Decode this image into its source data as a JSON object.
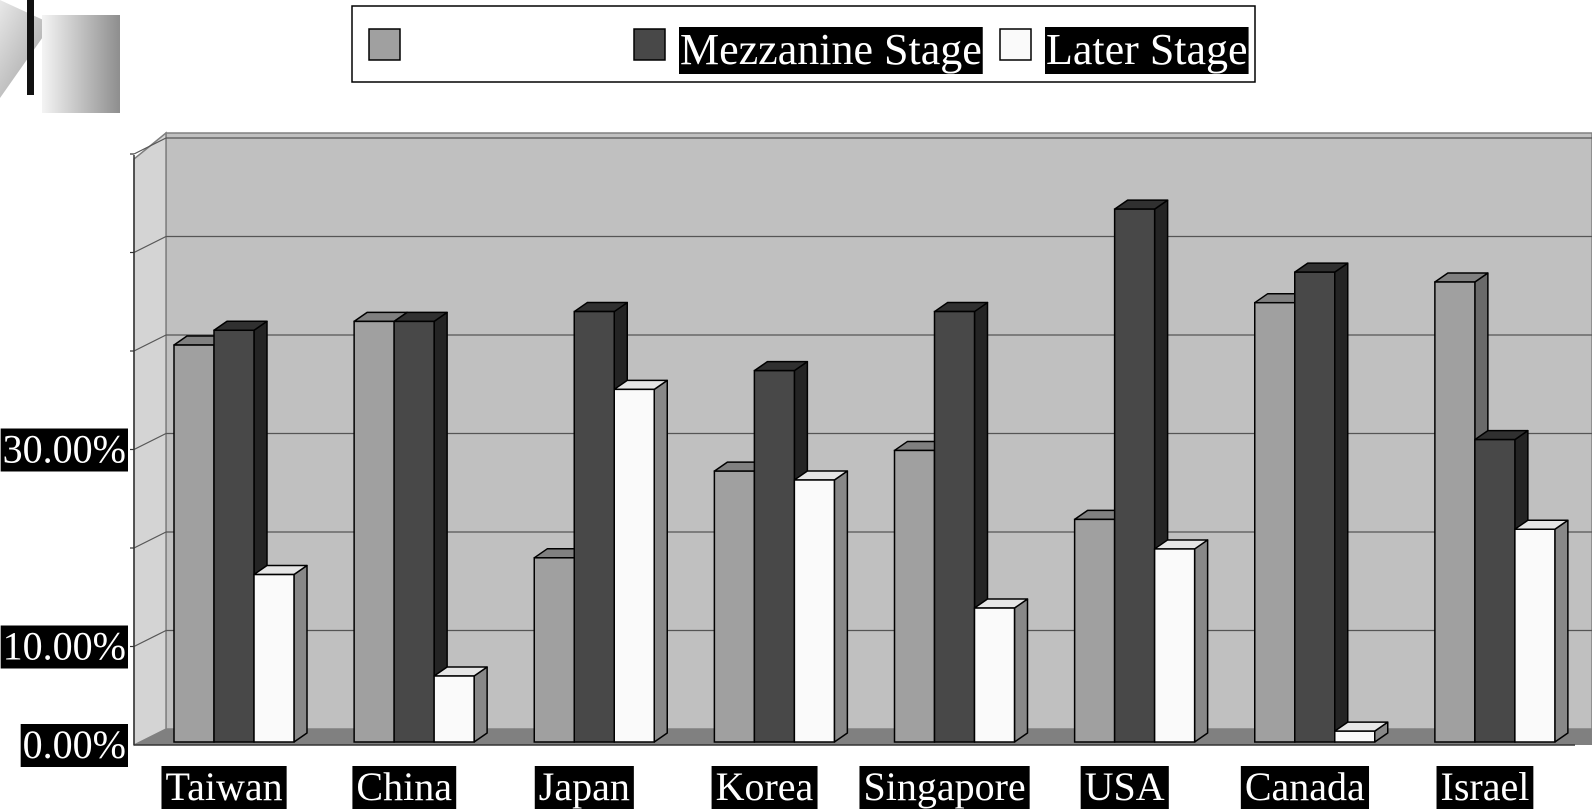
{
  "chart_data": {
    "type": "bar",
    "title": "",
    "xlabel": "",
    "ylabel": "",
    "categories": [
      "Taiwan",
      "China",
      "Japan",
      "Korea",
      "Singapore",
      "USA",
      "Canada",
      "Israel"
    ],
    "series": [
      {
        "name": "",
        "values": [
          40.3,
          42.7,
          18.7,
          27.5,
          29.6,
          22.6,
          44.6,
          46.7
        ]
      },
      {
        "name": "Mezzanine Stage",
        "values": [
          41.8,
          42.7,
          43.7,
          37.7,
          43.7,
          54.1,
          47.7,
          30.7
        ]
      },
      {
        "name": "Later Stage",
        "values": [
          17.0,
          6.7,
          35.8,
          26.6,
          13.6,
          19.6,
          1.1,
          21.6
        ]
      }
    ],
    "ylim": [
      0,
      60
    ],
    "ytick_labels": [
      {
        "value": 0,
        "label": "0.00%"
      },
      {
        "value": 10,
        "label": "10.00%"
      },
      {
        "value": 30,
        "label": "30.00%"
      }
    ],
    "grid": true,
    "legend_position": "top-center",
    "colors": {
      "series": [
        "#a0a0a0",
        "#484848",
        "#fafafa"
      ],
      "series_top": [
        "#808080",
        "#303030",
        "#e6e6e6"
      ],
      "series_side": [
        "#6a6a6a",
        "#242424",
        "#888888"
      ],
      "back_wall": "#c0c0c0",
      "side_wall": "#d4d4d4",
      "floor": "#808080",
      "gridline": "#555555"
    }
  }
}
